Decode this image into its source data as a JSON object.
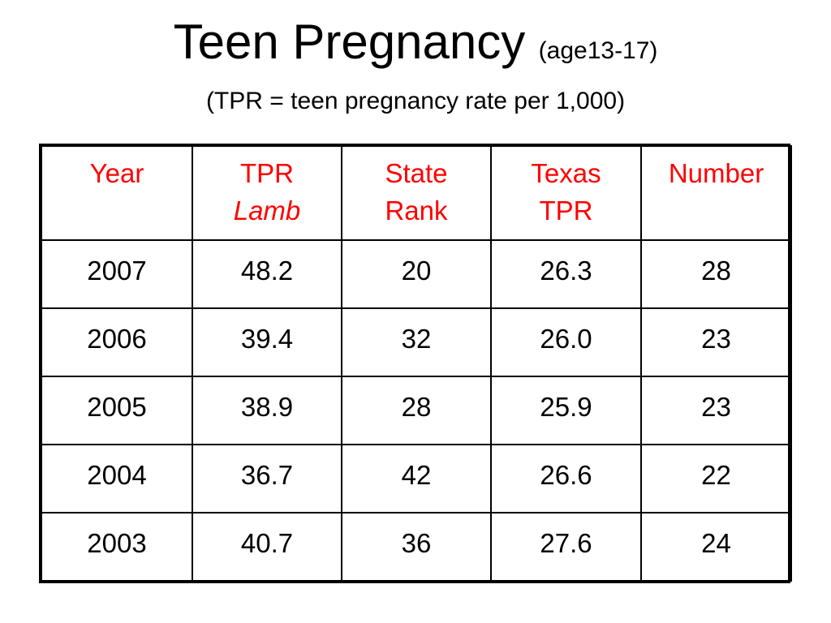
{
  "title": {
    "main": "Teen Pregnancy",
    "qualifier": "(age13-17)"
  },
  "subtitle": "(TPR = teen pregnancy rate per 1,000)",
  "colors": {
    "header_text": "#ff0000",
    "body_text": "#000000",
    "border": "#000000"
  },
  "table": {
    "headers": [
      {
        "line1": "Year",
        "line2": ""
      },
      {
        "line1": "TPR",
        "line2": "Lamb"
      },
      {
        "line1": "State",
        "line2": "Rank"
      },
      {
        "line1": "Texas",
        "line2": "TPR"
      },
      {
        "line1": "Number",
        "line2": ""
      }
    ],
    "rows": [
      [
        "2007",
        "48.2",
        "20",
        "26.3",
        "28"
      ],
      [
        "2006",
        "39.4",
        "32",
        "26.0",
        "23"
      ],
      [
        "2005",
        "38.9",
        "28",
        "25.9",
        "23"
      ],
      [
        "2004",
        "36.7",
        "42",
        "26.6",
        "22"
      ],
      [
        "2003",
        "40.7",
        "36",
        "27.6",
        "24"
      ]
    ]
  }
}
